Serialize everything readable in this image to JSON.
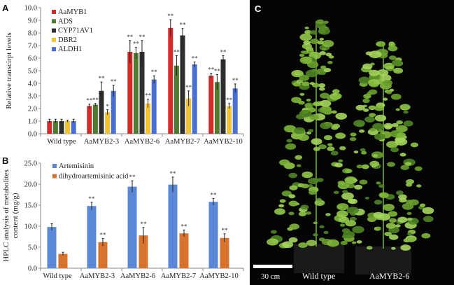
{
  "chart_data": [
    {
      "panel": "A",
      "type": "bar",
      "ylabel": "Relative transcirpt levels",
      "ylim": [
        0,
        10
      ],
      "yticks": [
        "0.0",
        "1.0",
        "2.0",
        "3.0",
        "4.0",
        "5.0",
        "6.0",
        "7.0",
        "8.0",
        "9.0",
        "10.0"
      ],
      "categories": [
        "Wild type",
        "AaMYB2-3",
        "AaMYB2-6",
        "AaMYB2-7",
        "AaMYB2-10"
      ],
      "legend_position": "top-left",
      "series": [
        {
          "name": "AaMYB1",
          "color": "#d32a2a",
          "values": [
            1.0,
            2.2,
            6.5,
            8.4,
            4.6
          ],
          "errors": [
            0.15,
            0.15,
            0.9,
            0.65,
            0.2
          ],
          "sig": [
            "",
            "**",
            "**",
            "**",
            "**"
          ]
        },
        {
          "name": "ADS",
          "color": "#4f7a2f",
          "values": [
            1.0,
            2.3,
            6.4,
            5.4,
            4.1
          ],
          "errors": [
            0.15,
            0.1,
            0.45,
            0.8,
            0.6
          ],
          "sig": [
            "",
            "**",
            "**",
            "**",
            "**"
          ]
        },
        {
          "name": "CYP71AV1",
          "color": "#2e2e2e",
          "values": [
            1.0,
            3.4,
            6.5,
            7.8,
            5.9
          ],
          "errors": [
            0.15,
            0.7,
            0.9,
            0.55,
            0.3
          ],
          "sig": [
            "",
            "**",
            "**",
            "**",
            "**"
          ]
        },
        {
          "name": "DBR2",
          "color": "#f0c132",
          "values": [
            1.0,
            1.7,
            2.4,
            2.8,
            2.2
          ],
          "errors": [
            0.08,
            0.2,
            0.35,
            0.6,
            0.2
          ],
          "sig": [
            "",
            "*",
            "**",
            "**",
            "**"
          ]
        },
        {
          "name": "ALDH1",
          "color": "#4a6fd0",
          "values": [
            1.0,
            3.4,
            4.3,
            5.5,
            3.6
          ],
          "errors": [
            0.15,
            0.45,
            0.3,
            0.2,
            0.35
          ],
          "sig": [
            "",
            "**",
            "**",
            "**",
            "**"
          ]
        }
      ]
    },
    {
      "panel": "B",
      "type": "bar",
      "ylabel": [
        "HPLC analysis of metabolites",
        "content (mg/g)"
      ],
      "ylim": [
        0,
        25
      ],
      "yticks": [
        "0.0",
        "5.0",
        "10.0",
        "15.0",
        "20.0",
        "25.0"
      ],
      "categories": [
        "Wild type",
        "AaMYB2-3",
        "AaMYB2-6",
        "AaMYB2-7",
        "AaMYB2-10"
      ],
      "legend_position": "top-left",
      "series": [
        {
          "name": "Artemisinin",
          "color": "#5b88d6",
          "values": [
            9.8,
            14.8,
            19.4,
            19.9,
            15.8
          ],
          "errors": [
            0.8,
            0.9,
            1.4,
            1.8,
            0.8
          ],
          "sig": [
            "",
            "**",
            "**",
            "**",
            "**"
          ]
        },
        {
          "name": "dihydroartemisinic acid",
          "color": "#d8732e",
          "values": [
            3.4,
            6.2,
            7.8,
            8.3,
            7.2
          ],
          "errors": [
            0.4,
            0.9,
            1.9,
            0.8,
            1.0
          ],
          "sig": [
            "",
            "**",
            "**",
            "**",
            "**"
          ]
        }
      ]
    }
  ],
  "photo": {
    "panel": "C",
    "scale_bar": "30 cm",
    "labels": [
      "Wild type",
      "AaMYB2-6"
    ]
  }
}
